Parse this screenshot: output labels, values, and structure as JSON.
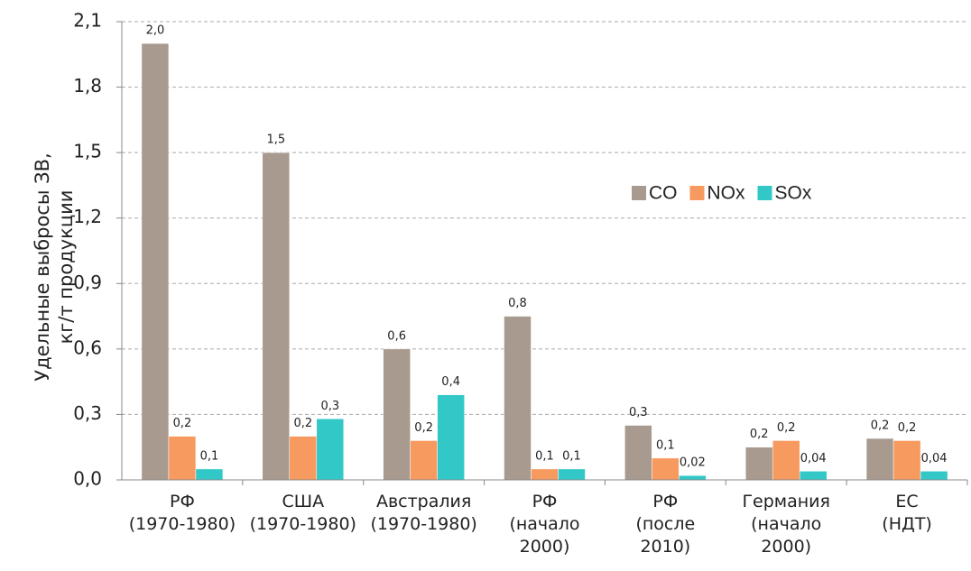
{
  "chart_data": {
    "type": "bar",
    "y_label": "Удельные выбросы ЗВ,\nкг/т продукции",
    "categories": [
      "РФ\n(1970-1980)",
      "США\n(1970-1980)",
      "Австралия\n(1970-1980)",
      "РФ\n(начало\n2000)",
      "РФ\n(после\n2010)",
      "Германия\n(начало\n2000)",
      "ЕС\n(НДТ)"
    ],
    "series": [
      {
        "name": "CO",
        "color": "#a89a8e",
        "values": [
          2.0,
          1.5,
          0.6,
          0.75,
          0.25,
          0.15,
          0.19
        ],
        "value_labels": [
          "2,0",
          "1,5",
          "0,6",
          "0,8",
          "0,3",
          "0,2",
          "0,2"
        ]
      },
      {
        "name": "NOx",
        "color": "#f79a5f",
        "values": [
          0.2,
          0.2,
          0.18,
          0.05,
          0.1,
          0.18,
          0.18
        ],
        "value_labels": [
          "0,2",
          "0,2",
          "0,2",
          "0,1",
          "0,1",
          "0,2",
          "0,2"
        ]
      },
      {
        "name": "SOx",
        "color": "#33c8c8",
        "values": [
          0.05,
          0.28,
          0.39,
          0.05,
          0.02,
          0.04,
          0.04
        ],
        "value_labels": [
          "0,1",
          "0,3",
          "0,4",
          "0,1",
          "0,02",
          "0,04",
          "0,04"
        ]
      }
    ],
    "ylim": [
      0,
      2.1
    ],
    "yticks": [
      {
        "value": 0,
        "label": "0,0"
      },
      {
        "value": 0.3,
        "label": "0,3"
      },
      {
        "value": 0.6,
        "label": "0,6"
      },
      {
        "value": 0.9,
        "label": "0,9"
      },
      {
        "value": 1.2,
        "label": "1,2"
      },
      {
        "value": 1.5,
        "label": "1,5"
      },
      {
        "value": 1.8,
        "label": "1,8"
      },
      {
        "value": 2.1,
        "label": "2,1"
      }
    ],
    "grid": true,
    "legend": "center"
  }
}
